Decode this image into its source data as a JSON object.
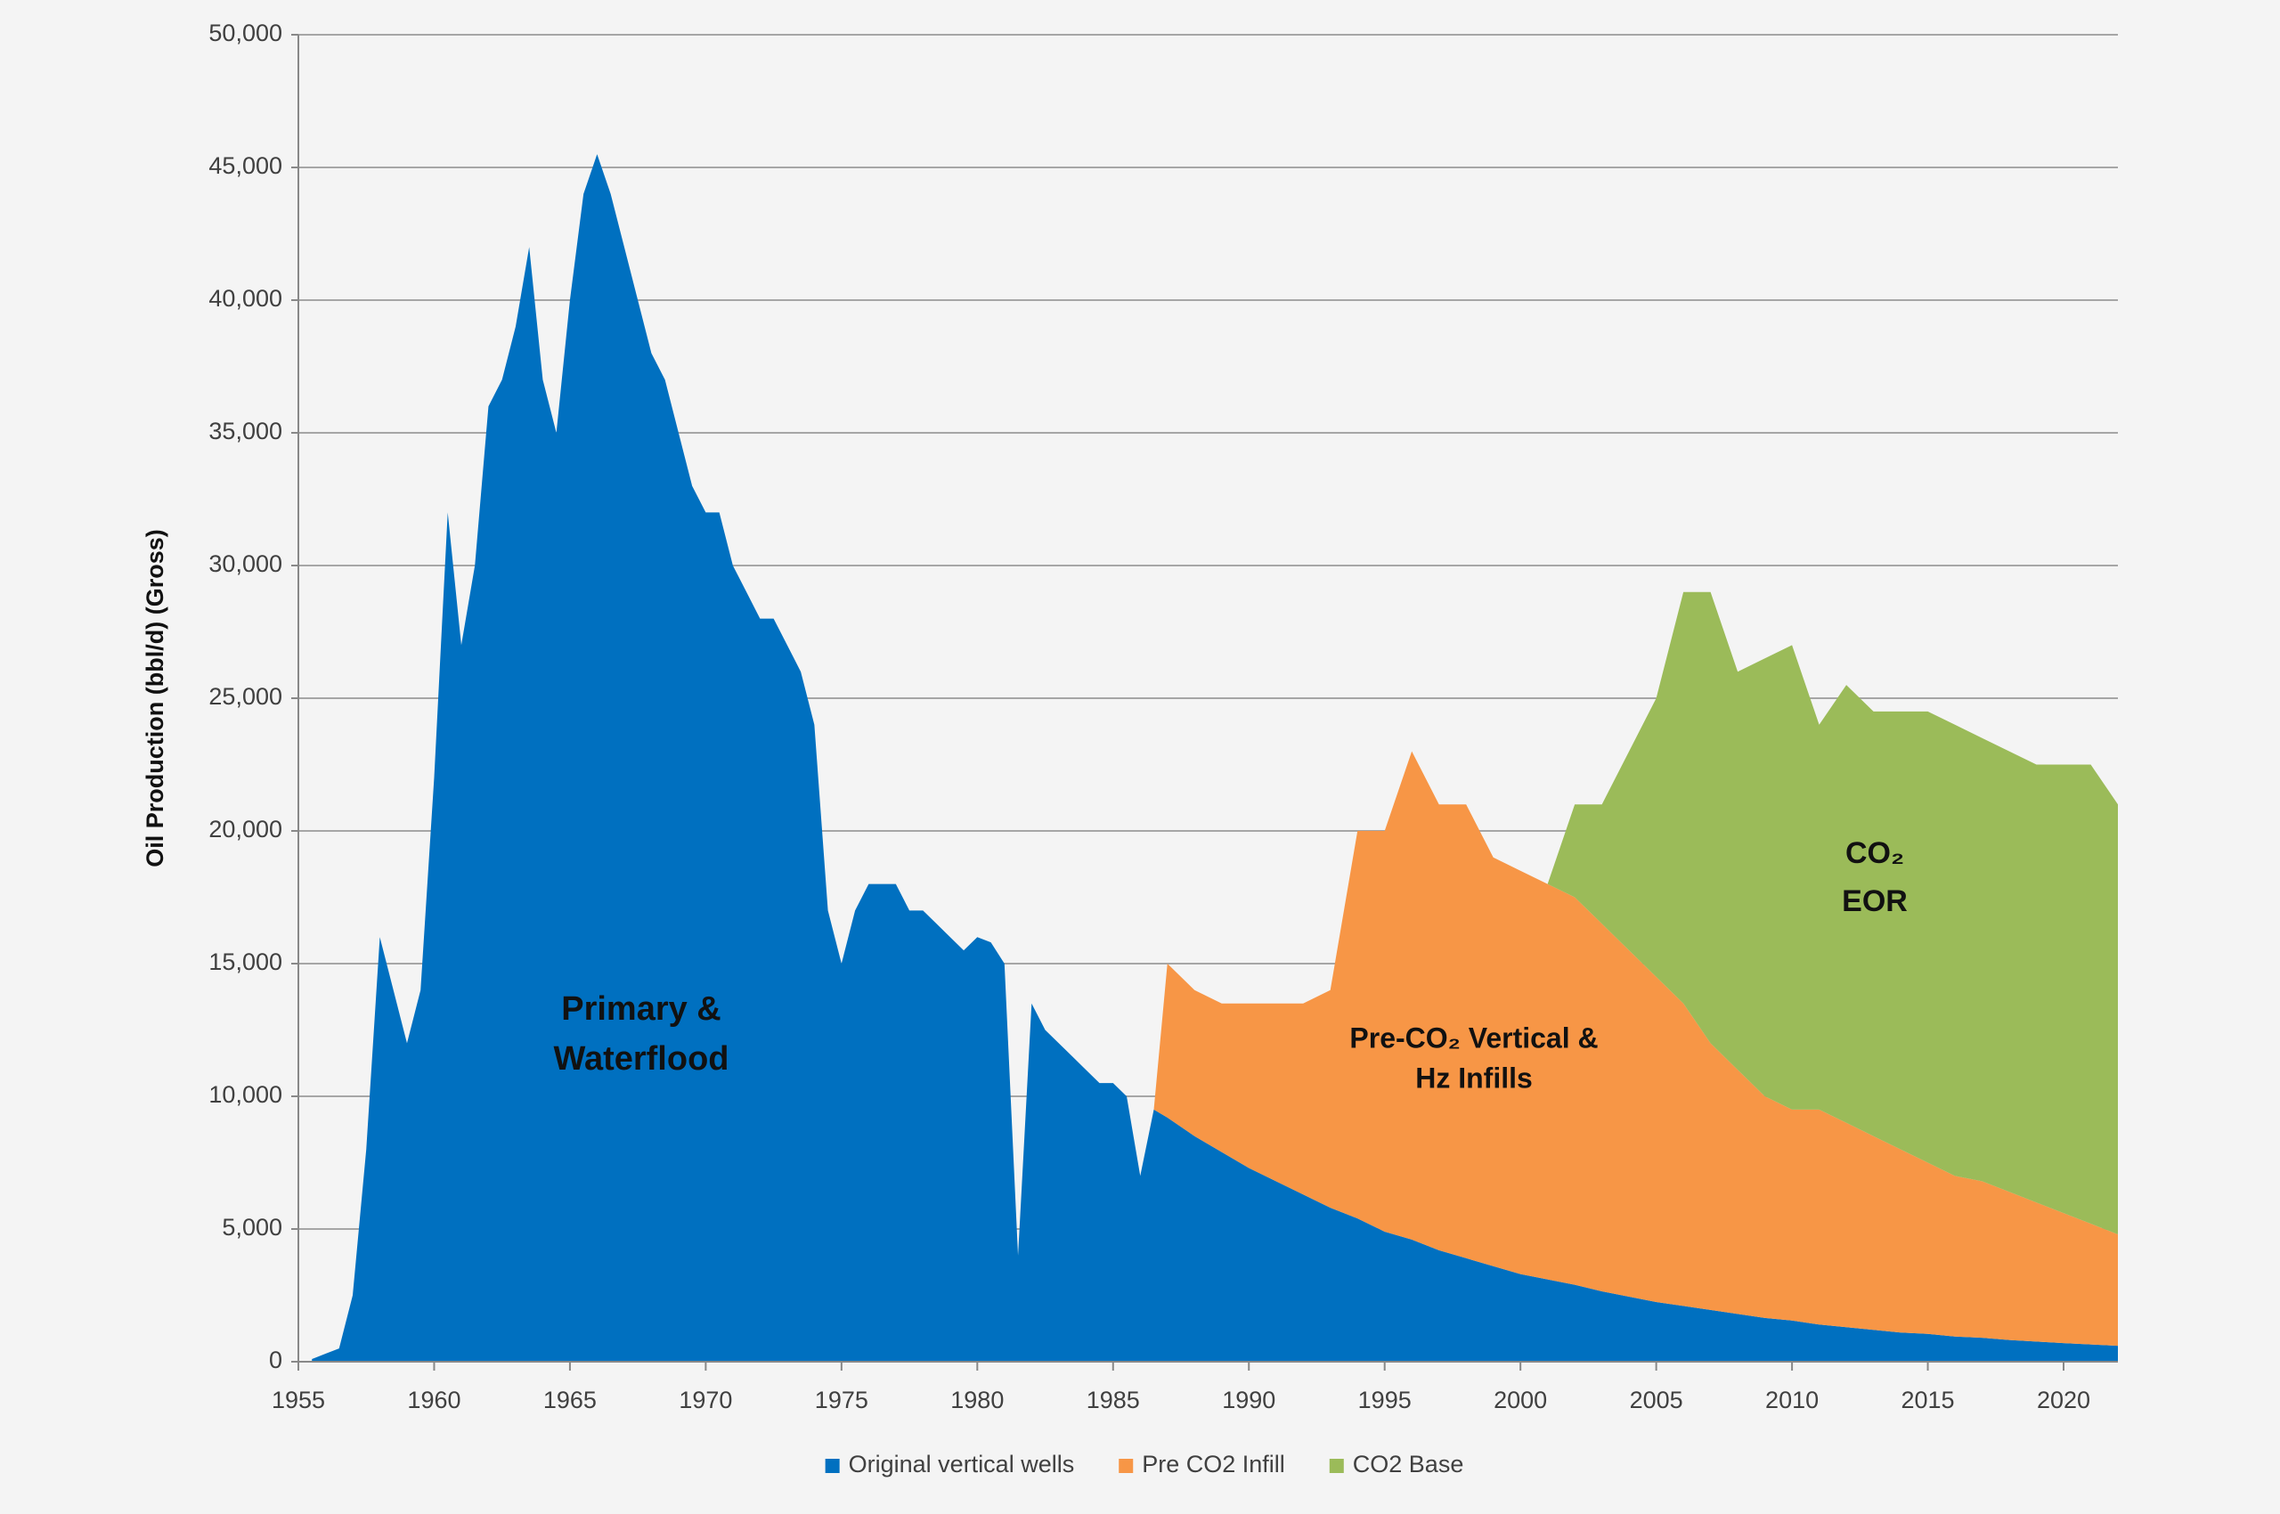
{
  "chart_data": {
    "type": "stacked_area",
    "y_label": "Oil Production (bbl/d) (Gross)",
    "xlim": [
      1955,
      2022
    ],
    "xticks": [
      1955,
      1960,
      1965,
      1970,
      1975,
      1980,
      1985,
      1990,
      1995,
      2000,
      2005,
      2010,
      2015,
      2020
    ],
    "ylim": [
      0,
      50000
    ],
    "yticks": [
      0,
      {
        "value": 5000,
        "label": "5,000"
      },
      {
        "value": 10000,
        "label": "10,000"
      },
      {
        "value": 15000,
        "label": "15,000"
      },
      {
        "value": 20000,
        "label": "20,000"
      },
      {
        "value": 25000,
        "label": "25,000"
      },
      {
        "value": 30000,
        "label": "30,000"
      },
      {
        "value": 35000,
        "label": "35,000"
      },
      {
        "value": 40000,
        "label": "40,000"
      },
      {
        "value": 45000,
        "label": "45,000"
      },
      {
        "value": 50000,
        "label": "50,000"
      }
    ],
    "grid": true,
    "legend": "bottom",
    "annotations": [
      {
        "lines": [
          "Primary &",
          "Waterflood"
        ]
      },
      {
        "lines": [
          "Pre-CO₂ Vertical &",
          "Hz Infills"
        ]
      },
      {
        "lines": [
          "CO₂",
          "EOR"
        ]
      }
    ],
    "x": [
      1955.5,
      1956,
      1956.5,
      1957,
      1957.5,
      1958,
      1958.5,
      1959,
      1959.5,
      1960,
      1960.5,
      1961,
      1961.5,
      1962,
      1962.5,
      1963,
      1963.5,
      1964,
      1964.5,
      1965,
      1965.5,
      1966,
      1966.5,
      1967,
      1967.5,
      1968,
      1968.5,
      1969,
      1969.5,
      1970,
      1970.5,
      1971,
      1971.5,
      1972,
      1972.5,
      1973,
      1973.5,
      1974,
      1974.5,
      1975,
      1975.5,
      1976,
      1976.5,
      1977,
      1977.5,
      1978,
      1978.5,
      1979,
      1979.5,
      1980,
      1980.5,
      1981,
      1981.5,
      1982,
      1982.5,
      1983,
      1983.5,
      1984,
      1984.5,
      1985,
      1985.5,
      1986,
      1986.5,
      1987,
      1988,
      1989,
      1990,
      1991,
      1992,
      1993,
      1994,
      1995,
      1996,
      1997,
      1998,
      1999,
      2000,
      2001,
      2002,
      2003,
      2004,
      2005,
      2006,
      2007,
      2008,
      2009,
      2010,
      2011,
      2012,
      2013,
      2014,
      2015,
      2016,
      2017,
      2018,
      2019,
      2020,
      2021,
      2022
    ],
    "series": [
      {
        "name": "Original vertical wells",
        "color": "#0070c0",
        "values": [
          100,
          300,
          500,
          2500,
          8000,
          16000,
          14000,
          12000,
          14000,
          22000,
          32000,
          27000,
          30000,
          36000,
          37000,
          39000,
          42000,
          37000,
          35000,
          40000,
          44000,
          45500,
          44000,
          42000,
          40000,
          38000,
          37000,
          35000,
          33000,
          32000,
          32000,
          30000,
          29000,
          28000,
          28000,
          27000,
          26000,
          24000,
          17000,
          15000,
          17000,
          18000,
          18000,
          18000,
          17000,
          17000,
          16500,
          16000,
          15500,
          16000,
          15800,
          15000,
          4000,
          13500,
          12500,
          12000,
          11500,
          11000,
          10500,
          10500,
          10000,
          7000,
          9500,
          9200,
          8500,
          7900,
          7300,
          6800,
          6300,
          5800,
          5400,
          4900,
          4600,
          4200,
          3900,
          3600,
          3300,
          3100,
          2900,
          2650,
          2450,
          2250,
          2100,
          1950,
          1800,
          1650,
          1550,
          1400,
          1300,
          1200,
          1100,
          1050,
          950,
          900,
          820,
          760,
          700,
          650,
          600
        ]
      },
      {
        "name": "Pre CO2 Infill",
        "color": "#f79646",
        "values": [
          0,
          0,
          0,
          0,
          0,
          0,
          0,
          0,
          0,
          0,
          0,
          0,
          0,
          0,
          0,
          0,
          0,
          0,
          0,
          0,
          0,
          0,
          0,
          0,
          0,
          0,
          0,
          0,
          0,
          0,
          0,
          0,
          0,
          0,
          0,
          0,
          0,
          0,
          0,
          0,
          0,
          0,
          0,
          0,
          0,
          0,
          0,
          0,
          0,
          0,
          0,
          0,
          0,
          0,
          0,
          0,
          0,
          0,
          0,
          0,
          0,
          0,
          0,
          5800,
          5500,
          5600,
          6200,
          6700,
          7200,
          8200,
          14600,
          15100,
          18400,
          16800,
          17100,
          15400,
          15200,
          14900,
          14600,
          13850,
          13050,
          12250,
          11400,
          10050,
          9200,
          8350,
          7950,
          8100,
          7700,
          7300,
          6900,
          6450,
          6050,
          5900,
          5580,
          5240,
          4900,
          4550,
          4200
        ]
      },
      {
        "name": "CO2 Base",
        "color": "#9bbb59",
        "values": [
          0,
          0,
          0,
          0,
          0,
          0,
          0,
          0,
          0,
          0,
          0,
          0,
          0,
          0,
          0,
          0,
          0,
          0,
          0,
          0,
          0,
          0,
          0,
          0,
          0,
          0,
          0,
          0,
          0,
          0,
          0,
          0,
          0,
          0,
          0,
          0,
          0,
          0,
          0,
          0,
          0,
          0,
          0,
          0,
          0,
          0,
          0,
          0,
          0,
          0,
          0,
          0,
          0,
          0,
          0,
          0,
          0,
          0,
          0,
          0,
          0,
          0,
          0,
          0,
          0,
          0,
          0,
          0,
          0,
          0,
          0,
          0,
          0,
          0,
          0,
          0,
          0,
          0,
          3500,
          4500,
          7500,
          10500,
          15500,
          17000,
          15000,
          16500,
          17500,
          14500,
          16500,
          16000,
          16500,
          17000,
          17000,
          16700,
          16600,
          16500,
          16900,
          17300,
          16200
        ]
      }
    ]
  }
}
